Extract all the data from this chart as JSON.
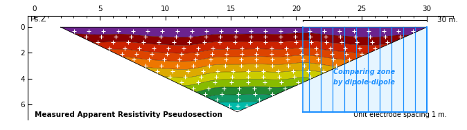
{
  "title_bottom_left": "Measured Apparent Resistivity Pseudosection",
  "title_bottom_right": "Unit electrode spacing 1 m.",
  "ylabel": "Ps.Z",
  "xlabel_end": "30 m.",
  "x_ticks": [
    0,
    5,
    10,
    15,
    20,
    25,
    30
  ],
  "y_ticks": [
    0,
    2,
    4,
    6
  ],
  "xlim": [
    -0.5,
    32
  ],
  "ylim_bottom": -7.2,
  "ylim_top": 0.9,
  "comparing_zone_text_line1": "Comparing zone",
  "comparing_zone_text_line2": "by dipole-dipole",
  "comparing_zone_color": "#1E90FF",
  "background_color": "#ffffff",
  "pseudo_left_x": 2.0,
  "pseudo_right_x": 30.0,
  "pseudo_apex_x": 15.5,
  "pseudo_apex_y": -6.6,
  "comp_zone_left_x": 20.5,
  "comp_zone_right_x": 30.0,
  "comp_zone_bottom_y": -6.6,
  "layer_colors": [
    "#6B238E",
    "#8B0000",
    "#CC2200",
    "#DD4400",
    "#EE7700",
    "#DDAA00",
    "#CCCC00",
    "#88BB00",
    "#228833",
    "#119966",
    "#00BBAA"
  ],
  "bracket_x_start": 20.5,
  "bracket_x_end": 30.0,
  "bracket_y": 0.55
}
